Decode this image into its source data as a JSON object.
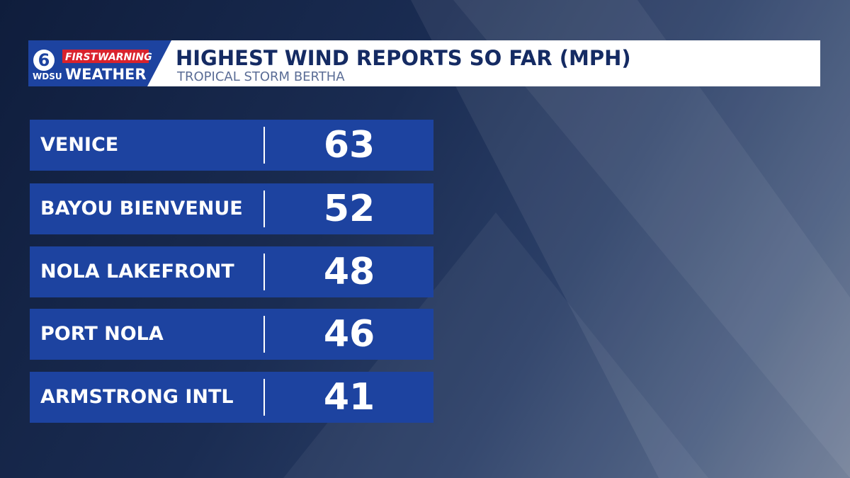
{
  "logo": {
    "channel": "6",
    "first": "FIRST",
    "warning": "WARNING",
    "station": "WDSU",
    "weather": "WEATHER"
  },
  "header": {
    "title": "HIGHEST WIND REPORTS SO FAR (MPH)",
    "subtitle": "TROPICAL STORM BERTHA"
  },
  "table": {
    "rows": [
      [
        "VENICE",
        63
      ],
      [
        "BAYOU BIENVENUE",
        52
      ],
      [
        "NOLA LAKEFRONT",
        48
      ],
      [
        "PORT NOLA",
        46
      ],
      [
        "ARMSTRONG INTL",
        41
      ]
    ]
  }
}
